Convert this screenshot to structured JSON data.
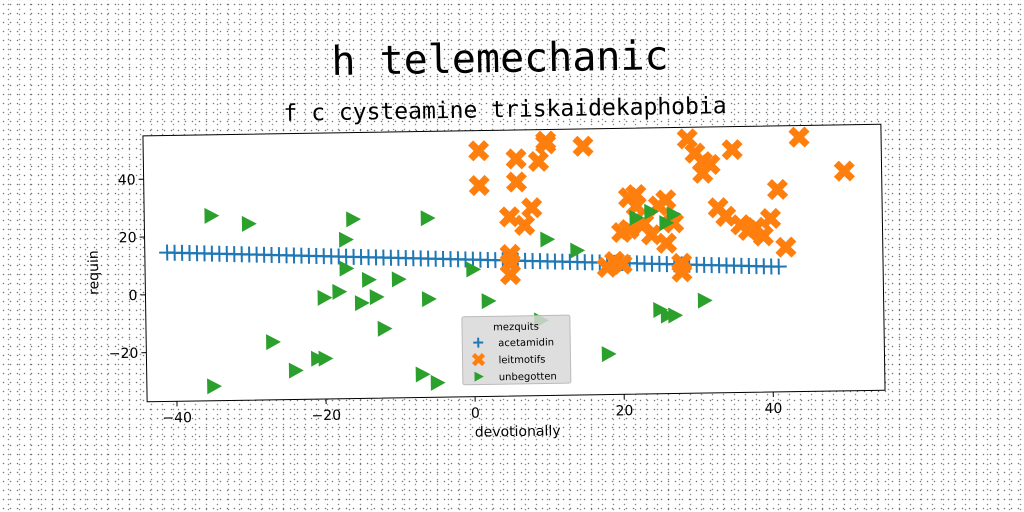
{
  "chart_data": {
    "type": "scatter",
    "title": "h telemechanic",
    "subtitle": "f c cysteamine triskaidekaphobia",
    "xlabel": "devotionally",
    "ylabel": "requin",
    "xlim": [
      -44,
      55
    ],
    "ylim": [
      -37,
      55
    ],
    "xticks": [
      -40,
      -20,
      0,
      20,
      40
    ],
    "yticks": [
      -20,
      0,
      20,
      40
    ],
    "xtick_labels": [
      "−40",
      "−20",
      "0",
      "20",
      "40"
    ],
    "ytick_labels": [
      "−20",
      "0",
      "20",
      "40"
    ],
    "grid": false,
    "legend": {
      "title": "mezquits",
      "placement": "lower-center"
    },
    "series": [
      {
        "name": "acetamidin",
        "marker": "plus",
        "color": "#1f77b4",
        "x": [
          -41,
          -40,
          -39,
          -38,
          -37,
          -36,
          -35,
          -34,
          -33,
          -32,
          -31,
          -30,
          -29,
          -28,
          -27,
          -26,
          -25,
          -24,
          -23,
          -22,
          -21,
          -20,
          -19,
          -18,
          -17,
          -16,
          -15,
          -14,
          -13,
          -12,
          -11,
          -10,
          -9,
          -8,
          -7,
          -6,
          -5,
          -4,
          -3,
          -2,
          -1,
          0,
          1,
          2,
          3,
          4,
          5,
          6,
          7,
          8,
          9,
          10,
          11,
          12,
          13,
          14,
          15,
          16,
          17,
          18,
          19,
          20,
          21,
          22,
          23,
          24,
          25,
          26,
          27,
          28,
          29,
          30,
          31,
          32,
          33,
          34,
          35,
          36,
          37,
          38,
          39,
          40,
          41
        ],
        "y": [
          14.5,
          14.4,
          14.3,
          14.2,
          14.1,
          14.0,
          13.9,
          13.8,
          13.7,
          13.6,
          13.5,
          13.4,
          13.3,
          13.2,
          13.1,
          13.0,
          12.9,
          12.8,
          12.7,
          12.6,
          12.5,
          12.4,
          12.3,
          12.2,
          12.1,
          12.0,
          11.9,
          11.8,
          11.7,
          11.6,
          11.5,
          11.4,
          11.3,
          11.2,
          11.1,
          11.0,
          10.9,
          10.8,
          10.7,
          10.6,
          10.5,
          10.4,
          10.3,
          10.2,
          10.1,
          10.0,
          9.9,
          9.8,
          9.7,
          9.6,
          9.5,
          9.4,
          9.3,
          9.2,
          9.1,
          9.0,
          8.9,
          8.8,
          8.7,
          8.6,
          8.5,
          8.4,
          8.3,
          8.2,
          8.1,
          8.0,
          7.9,
          7.8,
          7.7,
          7.6,
          7.5,
          7.4,
          7.3,
          7.2,
          7.1,
          7.0,
          6.9,
          6.8,
          6.7,
          6.6,
          6.5,
          6.4,
          6.3
        ]
      },
      {
        "name": "leitmotifs",
        "marker": "x-filled",
        "color": "#ff7f0e",
        "x": [
          1,
          1,
          5,
          5,
          5,
          5,
          6,
          6,
          7,
          8,
          9,
          10,
          10,
          15,
          18,
          19,
          20,
          20,
          21,
          21,
          22,
          22,
          23,
          24,
          25,
          26,
          26,
          27,
          28,
          28,
          29,
          30,
          31,
          31,
          32,
          33,
          34,
          35,
          36,
          37,
          38,
          39,
          40,
          41,
          42,
          44,
          50
        ],
        "y": [
          48,
          36,
          25,
          12,
          5,
          9,
          37,
          45,
          22,
          28,
          44,
          50,
          51,
          49,
          7,
          9,
          8,
          19,
          20,
          31,
          28,
          32,
          22,
          18,
          28,
          30,
          15,
          22,
          8,
          5,
          51,
          46,
          43,
          39,
          42,
          27,
          24,
          47,
          21,
          19,
          20,
          17,
          23,
          33,
          13,
          51,
          39
        ]
      },
      {
        "name": "unbegotten",
        "marker": "triangle-right",
        "color": "#2ca02c",
        "x": [
          -35,
          -30,
          -27,
          -24,
          -20,
          -20,
          -18,
          -17,
          -16,
          -15,
          -14,
          -13,
          -12,
          -10,
          -7,
          -6,
          -6,
          -5,
          0,
          2,
          9,
          10,
          14,
          18,
          22,
          24,
          25,
          26,
          26,
          27,
          27,
          31,
          -35,
          -21,
          -17
        ],
        "y": [
          27,
          24,
          -17,
          -27,
          -23,
          -2,
          0,
          8,
          25,
          -4,
          4,
          -2,
          -13,
          4,
          -29,
          -3,
          25,
          -32,
          7,
          -4,
          -11,
          17,
          13,
          -23,
          24,
          26,
          -8,
          22,
          -10,
          -10,
          25,
          -5,
          -32,
          -23,
          18
        ]
      }
    ]
  }
}
